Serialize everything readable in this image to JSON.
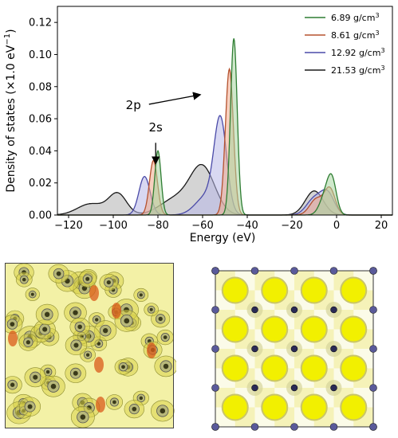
{
  "chart_data": {
    "type": "area",
    "xlabel": "Energy (eV)",
    "ylabel": "Density of states (×1.0 eV",
    "ylabel_sup": "−1",
    "ylabel_close": ")",
    "xlim": [
      -125,
      25
    ],
    "ylim": [
      0,
      0.13
    ],
    "x_ticks": [
      -120,
      -100,
      -80,
      -60,
      -40,
      -20,
      0,
      20
    ],
    "x_tick_labels": [
      "−120",
      "−100",
      "−80",
      "−60",
      "−40",
      "−20",
      "0",
      "20"
    ],
    "y_ticks": [
      0.0,
      0.02,
      0.04,
      0.06,
      0.08,
      0.1,
      0.12
    ],
    "y_tick_labels": [
      "0.00",
      "0.02",
      "0.04",
      "0.06",
      "0.08",
      "0.10",
      "0.12"
    ],
    "legend_position": "top-right",
    "annotations": [
      {
        "text": "2p",
        "x": -91,
        "y": 0.066,
        "arrow_from": [
          -84,
          0.069
        ],
        "arrow_to": [
          -61,
          0.075
        ]
      },
      {
        "text": "2s",
        "x": -81,
        "y": 0.052,
        "arrow_from": [
          -81,
          0.045
        ],
        "arrow_to": [
          -81,
          0.032
        ]
      }
    ],
    "series": [
      {
        "name": "6.89 g/cm",
        "unit_sup": "3",
        "color": "#2e7d32",
        "fill": "#a8d5a0",
        "peaks": [
          {
            "center": -80,
            "height": 0.04,
            "width": 1.4
          },
          {
            "center": -46,
            "height": 0.11,
            "width": 1.5
          },
          {
            "center": -5,
            "height": 0.012,
            "width": 2.5
          },
          {
            "center": -2,
            "height": 0.019,
            "width": 2.0
          }
        ]
      },
      {
        "name": "8.61 g/cm",
        "unit_sup": "3",
        "color": "#b5522f",
        "fill": "#f0a98a",
        "peaks": [
          {
            "center": -82,
            "height": 0.034,
            "width": 1.8
          },
          {
            "center": -48,
            "height": 0.091,
            "width": 1.8
          },
          {
            "center": -9,
            "height": 0.01,
            "width": 3.0
          },
          {
            "center": -3,
            "height": 0.016,
            "width": 2.4
          }
        ]
      },
      {
        "name": "12.92 g/cm",
        "unit_sup": "3",
        "color": "#4a4aa8",
        "fill": "#b8b8e8",
        "peaks": [
          {
            "center": -86,
            "height": 0.024,
            "width": 2.5
          },
          {
            "center": -58,
            "height": 0.012,
            "width": 5.0
          },
          {
            "center": -52,
            "height": 0.056,
            "width": 2.8
          },
          {
            "center": -10,
            "height": 0.01,
            "width": 3.5
          },
          {
            "center": -4,
            "height": 0.013,
            "width": 3.0
          }
        ]
      },
      {
        "name": "21.53 g/cm",
        "unit_sup": "3",
        "color": "#1a1a1a",
        "fill": "#b0b0b0",
        "peaks": [
          {
            "center": -110,
            "height": 0.007,
            "width": 6.0
          },
          {
            "center": -98,
            "height": 0.013,
            "width": 4.0
          },
          {
            "center": -72,
            "height": 0.01,
            "width": 7.0
          },
          {
            "center": -60,
            "height": 0.029,
            "width": 5.5
          },
          {
            "center": -10,
            "height": 0.015,
            "width": 4.0
          }
        ]
      }
    ]
  },
  "panels": {
    "left": {
      "bg": "#f3f1a6",
      "accent": "#e0c000",
      "hot": "#d95a1a"
    },
    "right": {
      "bg": "#ffffff",
      "accent": "#f2f000",
      "halo": "#c9c56a",
      "atom": "#2a2a55"
    }
  }
}
